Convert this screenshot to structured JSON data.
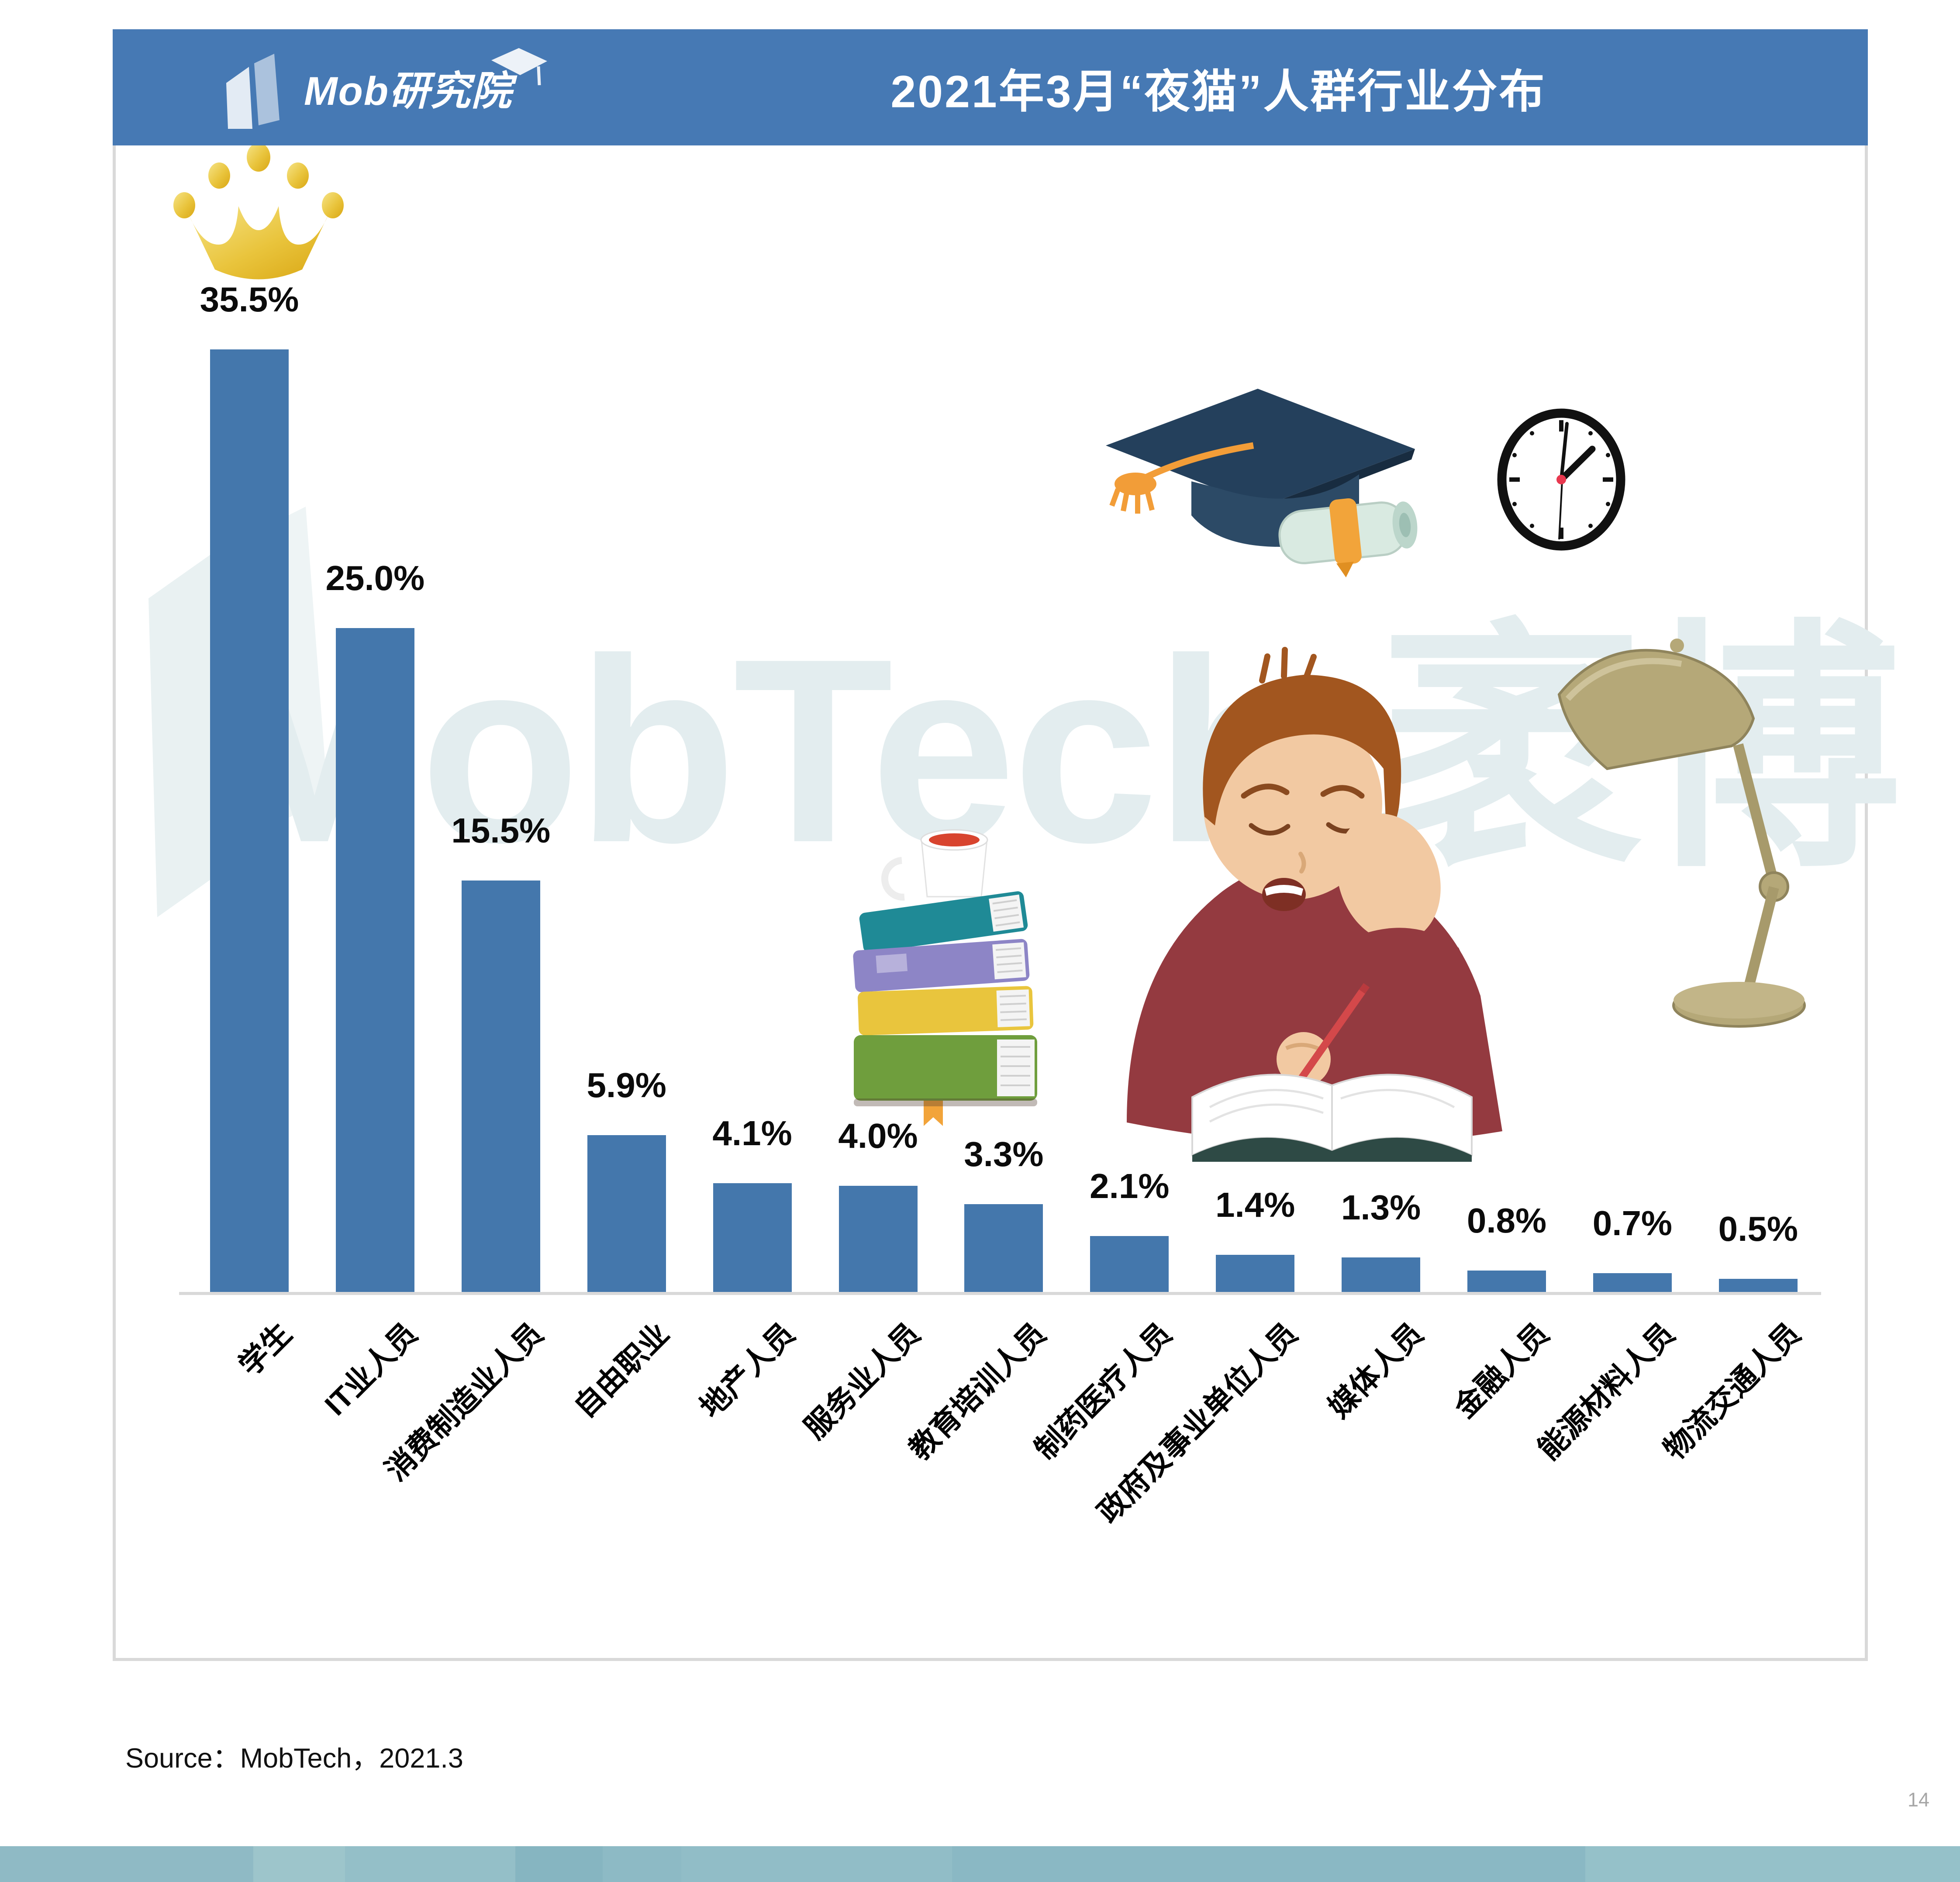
{
  "header": {
    "logo_text": "Mob研究院",
    "title": "2021年3月“夜猫”人群行业分布",
    "bg_color": "#4679B4"
  },
  "chart_data": {
    "type": "bar",
    "title": "2021年3月“夜猫”人群行业分布",
    "categories": [
      "学生",
      "IT业人员",
      "消费制造业人员",
      "自由职业",
      "地产人员",
      "服务业人员",
      "教育培训人员",
      "制药医疗人员",
      "政府及事业单位人员",
      "媒体人员",
      "金融人员",
      "能源材料人员",
      "物流交通人员"
    ],
    "values": [
      35.5,
      25.0,
      15.5,
      5.9,
      4.1,
      4.0,
      3.3,
      2.1,
      1.4,
      1.3,
      0.8,
      0.7,
      0.5
    ],
    "labels": [
      "35.5%",
      "25.0%",
      "15.5%",
      "5.9%",
      "4.1%",
      "4.0%",
      "3.3%",
      "2.1%",
      "1.4%",
      "1.3%",
      "0.8%",
      "0.7%",
      "0.5%"
    ],
    "unit": "%",
    "ylim": [
      0,
      38
    ],
    "grid": false,
    "legend": false,
    "bar_color": "#4477AC",
    "highlight": {
      "index": 0,
      "marker": "gold-crown"
    }
  },
  "watermark": {
    "text": "MobTech 袤博",
    "color": "#E3EDEF"
  },
  "footer": {
    "source": "Source：MobTech，2021.3",
    "page_number": "14"
  },
  "colors": {
    "header_blue": "#4679B4",
    "bar_blue": "#4477AC",
    "crown_gold": "#E2B32A",
    "strip_teal": "#8FBAC5",
    "frame_gray": "#D9D9D9"
  },
  "icons": [
    "mob-building-icon",
    "graduation-cap-small-icon",
    "gold-crown-icon",
    "graduation-cap-diploma-icon",
    "clock-icon",
    "book-stack-icon",
    "coffee-cup-icon",
    "tired-student-icon",
    "desk-lamp-icon"
  ]
}
